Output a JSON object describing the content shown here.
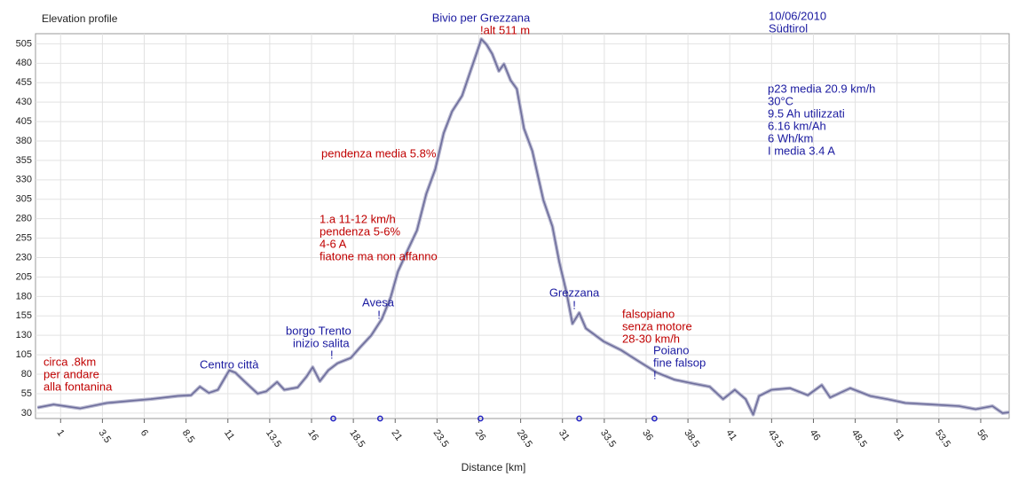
{
  "chart_data": {
    "type": "line",
    "title": "Elevation profile",
    "x_label": "Distance [km]",
    "series": [
      {
        "color": "#6e6e9c",
        "x": [
          -0.38,
          0.58,
          2.17,
          3.76,
          5.35,
          6.4,
          8.0,
          8.8,
          9.33,
          9.86,
          10.4,
          11.08,
          11.45,
          11.98,
          12.78,
          13.3,
          13.94,
          14.37,
          15.17,
          15.7,
          16.07,
          16.5,
          17.0,
          17.55,
          18.35,
          18.88,
          19.57,
          20.2,
          20.73,
          21.16,
          21.8,
          22.3,
          22.86,
          23.4,
          23.9,
          24.4,
          25.0,
          25.5,
          25.9,
          26.15,
          26.46,
          26.8,
          27.2,
          27.5,
          27.9,
          28.27,
          28.7,
          29.2,
          29.86,
          30.4,
          30.8,
          31.24,
          31.6,
          32.0,
          32.4,
          33.47,
          34.5,
          35.6,
          36.65,
          37.7,
          38.8,
          39.8,
          40.6,
          41.3,
          41.95,
          42.4,
          42.75,
          43.5,
          44.6,
          45.67,
          46.5,
          47.0,
          48.2,
          49.4,
          50.4,
          51.5,
          53.1,
          54.7,
          55.7,
          56.7,
          57.3,
          57.7
        ],
        "values": [
          37,
          41,
          36,
          43,
          46,
          48,
          52,
          53,
          64,
          56,
          60,
          85,
          82,
          71,
          55,
          58,
          70,
          60,
          63,
          77,
          89,
          71,
          85,
          94,
          101,
          114,
          130,
          151,
          179,
          212,
          242,
          265,
          312,
          344,
          390,
          418,
          438,
          470,
          495,
          511,
          504,
          492,
          470,
          479,
          458,
          447,
          396,
          367,
          304,
          270,
          225,
          185,
          145,
          159,
          139,
          122,
          111,
          96,
          82,
          73,
          68,
          64,
          48,
          60,
          48,
          28,
          52,
          60,
          62,
          53,
          66,
          50,
          62,
          52,
          48,
          43,
          41,
          39,
          35,
          39,
          30,
          31
        ]
      }
    ],
    "markers": {
      "x": [
        17.3,
        20.1,
        26.1,
        32.0,
        36.5
      ],
      "color": "#2020c0"
    },
    "xlim": [
      -0.5,
      57.7
    ],
    "ylim": [
      23,
      518
    ],
    "xticks": [
      1,
      3.5,
      6,
      8.5,
      11,
      13.5,
      16,
      18.5,
      21,
      23.5,
      26,
      28.5,
      31,
      33.5,
      36,
      38.5,
      41,
      43.5,
      46,
      48.5,
      51,
      53.5,
      56
    ],
    "yticks": [
      30,
      55,
      80,
      105,
      130,
      155,
      180,
      205,
      230,
      255,
      280,
      305,
      330,
      355,
      380,
      405,
      430,
      455,
      480,
      505
    ],
    "grid": true,
    "annotations": [
      {
        "lines": [
          "Bivio per Grezzana"
        ],
        "color": "#1a1aa0"
      },
      {
        "lines": [
          "!alt 511 m"
        ],
        "color": "#c00000"
      },
      {
        "lines": [
          "10/06/2010",
          "Südtirol"
        ],
        "color": "#1a1aa0"
      },
      {
        "lines": [
          "p23    media 20.9 km/h",
          "30°C",
          "9.5 Ah utilizzati",
          "6.16 km/Ah",
          "6 Wh/km",
          "I media 3.4 A"
        ],
        "color": "#1a1aa0"
      },
      {
        "lines": [
          "pendenza media 5.8%"
        ],
        "color": "#c00000"
      },
      {
        "lines": [
          "1.a     11-12 km/h",
          "pendenza 5-6%",
          "4-6 A",
          "fiatone ma non affanno"
        ],
        "color": "#c00000"
      },
      {
        "lines": [
          "Avesa",
          "!"
        ],
        "color": "#1a1aa0"
      },
      {
        "lines": [
          "borgo Trento",
          "inizio salita",
          "!"
        ],
        "color": "#1a1aa0"
      },
      {
        "lines": [
          "Centro città"
        ],
        "color": "#1a1aa0"
      },
      {
        "lines": [
          "circa .8km",
          "per andare",
          "alla fontanina"
        ],
        "color": "#c00000"
      },
      {
        "lines": [
          "Grezzana",
          "!"
        ],
        "color": "#1a1aa0"
      },
      {
        "lines": [
          "falsopiano",
          "senza motore",
          "28-30 km/h"
        ],
        "color": "#c00000"
      },
      {
        "lines": [
          "Poiano",
          "fine falsop",
          "!"
        ],
        "color": "#1a1aa0"
      }
    ]
  }
}
